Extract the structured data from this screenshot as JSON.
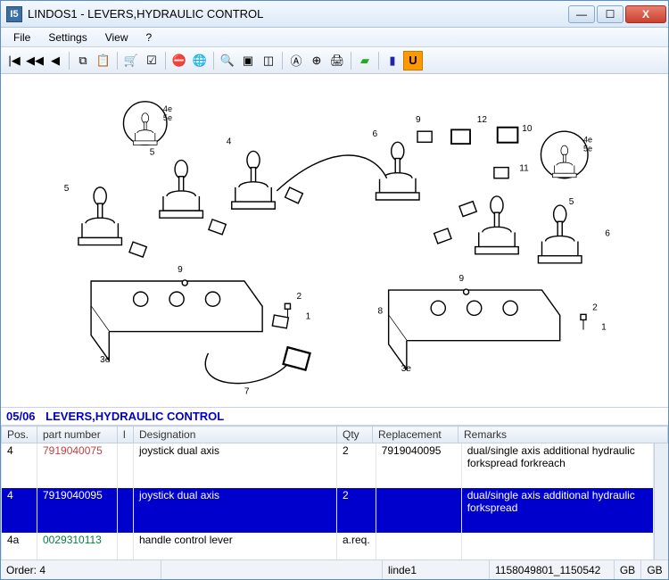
{
  "window": {
    "title": "LINDOS1 - LEVERS,HYDRAULIC CONTROL",
    "app_icon_text": "I5"
  },
  "menu": {
    "items": [
      "File",
      "Settings",
      "View",
      "?"
    ]
  },
  "toolbar": {
    "groups": [
      [
        "first",
        "prev-fast",
        "prev"
      ],
      [
        "copy",
        "paste"
      ],
      [
        "cart",
        "checklist"
      ],
      [
        "linkoff",
        "globe"
      ],
      [
        "zoom-in",
        "frame",
        "select"
      ],
      [
        "find",
        "zoom-fit",
        "print"
      ],
      [
        "flag-green"
      ],
      [
        "flag-blue",
        "u-mark"
      ]
    ],
    "icon_glyphs": {
      "first": "|◀",
      "prev-fast": "◀◀",
      "prev": "◀",
      "copy": "⧉",
      "paste": "📋",
      "cart": "🛒",
      "checklist": "☑",
      "linkoff": "⛔",
      "globe": "🌐",
      "zoom-in": "🔍",
      "frame": "▣",
      "select": "◫",
      "find": "Ⓐ",
      "zoom-fit": "⊕",
      "print": "🖨",
      "flag-green": "▰",
      "flag-blue": "▮",
      "u-mark": "U"
    }
  },
  "section": {
    "num": "05/06",
    "title": "LEVERS,HYDRAULIC CONTROL"
  },
  "table": {
    "columns": [
      "Pos.",
      "part number",
      "l",
      "Designation",
      "Qty",
      "Replacement",
      "Remarks"
    ],
    "col_widths": [
      "40px",
      "90px",
      "18px",
      "228px",
      "40px",
      "96px",
      "auto"
    ],
    "rows": [
      {
        "sel": false,
        "pos": "4",
        "pn": "7919040075",
        "pn_cls": "pn-red",
        "i": "",
        "des": "joystick dual axis",
        "qty": "2",
        "rep": "7919040095",
        "rem": "dual/single axis additional hydraulic forkspread forkreach"
      },
      {
        "sel": true,
        "pos": "4",
        "pn": "7919040095",
        "pn_cls": "",
        "i": "",
        "des": "joystick dual axis",
        "qty": "2",
        "rep": "",
        "rem": "dual/single axis additional hydraulic forkspread"
      },
      {
        "sel": false,
        "pos": "4a",
        "pn": "0029310113",
        "pn_cls": "pn-green",
        "i": "",
        "des": "handle control lever",
        "qty": "a.req.",
        "rep": "",
        "rem": ""
      }
    ]
  },
  "status": {
    "order": "Order: 4",
    "user": "linde1",
    "doc": "1158049801_1150542",
    "lang1": "GB",
    "lang2": "GB"
  },
  "colors": {
    "selection": "#0000cc",
    "link": "#0000cc",
    "titlebar_grad_top": "#f4f9ff",
    "titlebar_grad_bot": "#dce9f7"
  }
}
